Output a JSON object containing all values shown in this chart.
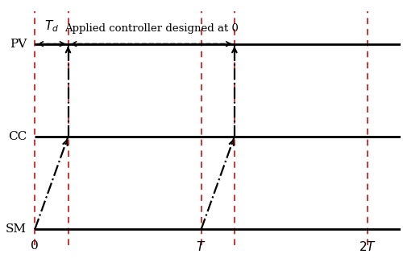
{
  "pv_y": 2.0,
  "cc_y": 1.0,
  "sm_y": 0.0,
  "x_min": 0.0,
  "x_max": 2.2,
  "y_min": -0.25,
  "y_max": 2.45,
  "T": 1.0,
  "Td": 0.2,
  "labels": {
    "pv": "PV",
    "cc": "CC",
    "sm": "SM"
  },
  "x_ticks": [
    0.0,
    1.0,
    2.0
  ],
  "x_tick_labels": [
    "0",
    "T",
    "2T"
  ],
  "red_dashed_x": [
    0.0,
    0.2,
    1.0,
    1.2,
    2.0
  ],
  "annotation_td": "$T_d$",
  "annotation_ctrl": "Applied controller designed at 0",
  "background_color": "#ffffff",
  "line_color": "#000000",
  "red_color": "#c00000"
}
